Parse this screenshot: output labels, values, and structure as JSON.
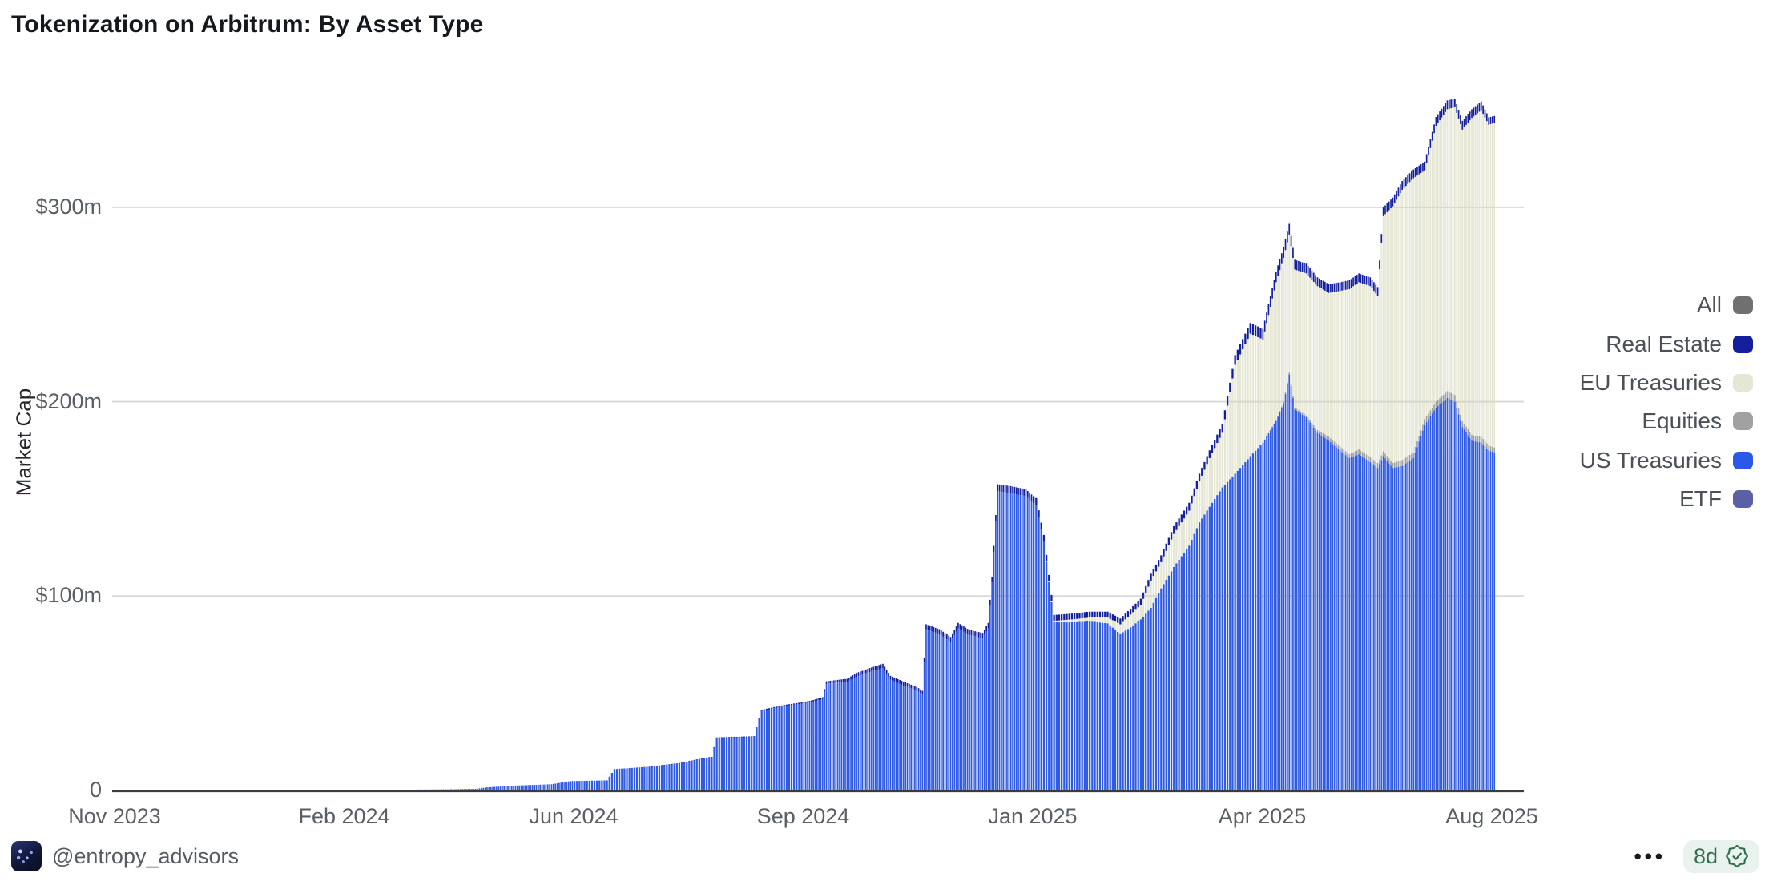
{
  "page": {
    "title": "Tokenization on Arbitrum: By Asset Type"
  },
  "legend": {
    "items": [
      {
        "series_id": "all",
        "label": "All",
        "color": "#6e7072"
      },
      {
        "series_id": "real_estate",
        "label": "Real Estate",
        "color": "#131f9c"
      },
      {
        "series_id": "eu_treasuries",
        "label": "EU Treasuries",
        "color": "#e5e6d4"
      },
      {
        "series_id": "equities",
        "label": "Equities",
        "color": "#9fa1a3"
      },
      {
        "series_id": "us_treasuries",
        "label": "US Treasuries",
        "color": "#2c58e8"
      },
      {
        "series_id": "etf",
        "label": "ETF",
        "color": "#5a5fa6"
      }
    ]
  },
  "footer": {
    "handle": "@entropy_advisors",
    "more_label": "•••",
    "age_badge": {
      "label": "8d"
    }
  },
  "chart_data": {
    "type": "bar",
    "stacked": true,
    "title": "Tokenization on Arbitrum: By Asset Type",
    "xlabel": "",
    "ylabel": "Market Cap",
    "unit": "USD millions",
    "ylim": [
      0,
      370
    ],
    "grid": "horizontal",
    "legend_position": "right",
    "bar_granularity": "daily",
    "y_ticks": [
      {
        "value": 0,
        "label": "0"
      },
      {
        "value": 100,
        "label": "$100m"
      },
      {
        "value": 200,
        "label": "$200m"
      },
      {
        "value": 300,
        "label": "$300m"
      }
    ],
    "x_ticks": [
      {
        "date": "2023-11-01",
        "label": "Nov 2023"
      },
      {
        "date": "2024-02-01",
        "label": "Feb 2024"
      },
      {
        "date": "2024-06-01",
        "label": "Jun 2024"
      },
      {
        "date": "2024-09-01",
        "label": "Sep 2024"
      },
      {
        "date": "2025-01-01",
        "label": "Jan 2025"
      },
      {
        "date": "2025-04-01",
        "label": "Apr 2025"
      },
      {
        "date": "2025-08-01",
        "label": "Aug 2025"
      }
    ],
    "series": [
      {
        "key": "us",
        "id": "us_treasuries",
        "name": "US Treasuries",
        "color": "#2f5ae3"
      },
      {
        "key": "eq",
        "id": "equities",
        "name": "Equities",
        "color": "#9fa1a3"
      },
      {
        "key": "eu",
        "id": "eu_treasuries",
        "name": "EU Treasuries",
        "color": "#e5e6d4"
      },
      {
        "key": "re",
        "id": "real_estate",
        "name": "Real Estate",
        "color": "#131f9c"
      },
      {
        "key": "etf",
        "id": "etf",
        "name": "ETF",
        "color": "#5a5fa6"
      }
    ],
    "stack_order": [
      "us",
      "eq",
      "eu",
      "re",
      "etf"
    ],
    "samples_unit": "$m",
    "samples": [
      {
        "d": "2023-11-01",
        "us": 0,
        "eq": 0,
        "eu": 0,
        "re": 0,
        "etf": 0
      },
      {
        "d": "2024-02-10",
        "us": 0,
        "eq": 0,
        "eu": 0,
        "re": 0,
        "etf": 0
      },
      {
        "d": "2024-02-14",
        "us": 0.3,
        "eq": 0,
        "eu": 0,
        "re": 0,
        "etf": 0
      },
      {
        "d": "2024-03-20",
        "us": 0.5,
        "eq": 0,
        "eu": 0,
        "re": 0,
        "etf": 0
      },
      {
        "d": "2024-04-10",
        "us": 0.8,
        "eq": 0,
        "eu": 0,
        "re": 0,
        "etf": 0
      },
      {
        "d": "2024-04-16",
        "us": 1.6,
        "eq": 0,
        "eu": 0,
        "re": 0,
        "etf": 0
      },
      {
        "d": "2024-05-01",
        "us": 2.5,
        "eq": 0,
        "eu": 0,
        "re": 0,
        "etf": 0
      },
      {
        "d": "2024-05-20",
        "us": 3.2,
        "eq": 0,
        "eu": 0,
        "re": 0,
        "etf": 0
      },
      {
        "d": "2024-05-30",
        "us": 4.8,
        "eq": 0,
        "eu": 0,
        "re": 0,
        "etf": 0
      },
      {
        "d": "2024-06-14",
        "us": 5.2,
        "eq": 0,
        "eu": 0,
        "re": 0,
        "etf": 0
      },
      {
        "d": "2024-06-17",
        "us": 11,
        "eq": 0,
        "eu": 0,
        "re": 0,
        "etf": 0
      },
      {
        "d": "2024-07-01",
        "us": 12,
        "eq": 0,
        "eu": 0,
        "re": 0.2,
        "etf": 0
      },
      {
        "d": "2024-07-14",
        "us": 14,
        "eq": 0,
        "eu": 0,
        "re": 0.3,
        "etf": 0
      },
      {
        "d": "2024-07-23",
        "us": 16.5,
        "eq": 0,
        "eu": 0,
        "re": 0.3,
        "etf": 0
      },
      {
        "d": "2024-07-26",
        "us": 17,
        "eq": 0,
        "eu": 0,
        "re": 0.3,
        "etf": 0
      },
      {
        "d": "2024-07-28",
        "us": 27,
        "eq": 0,
        "eu": 0,
        "re": 0.3,
        "etf": 0
      },
      {
        "d": "2024-08-12",
        "us": 27.5,
        "eq": 0,
        "eu": 0,
        "re": 0.4,
        "etf": 0
      },
      {
        "d": "2024-08-15",
        "us": 41,
        "eq": 0,
        "eu": 0,
        "re": 0.5,
        "etf": 0
      },
      {
        "d": "2024-08-24",
        "us": 43.5,
        "eq": 0,
        "eu": 0,
        "re": 0.5,
        "etf": 0
      },
      {
        "d": "2024-09-05",
        "us": 45.5,
        "eq": 0,
        "eu": 0,
        "re": 0.8,
        "etf": 0
      },
      {
        "d": "2024-09-11",
        "us": 47,
        "eq": 0,
        "eu": 0,
        "re": 1,
        "etf": 0
      },
      {
        "d": "2024-09-13",
        "us": 55,
        "eq": 0,
        "eu": 0,
        "re": 1.2,
        "etf": 0
      },
      {
        "d": "2024-09-24",
        "us": 56,
        "eq": 0,
        "eu": 0,
        "re": 1.5,
        "etf": 0
      },
      {
        "d": "2024-09-29",
        "us": 58.5,
        "eq": 0,
        "eu": 0,
        "re": 2,
        "etf": 0
      },
      {
        "d": "2024-10-06",
        "us": 61,
        "eq": 0,
        "eu": 0,
        "re": 2,
        "etf": 0
      },
      {
        "d": "2024-10-13",
        "us": 63,
        "eq": 0,
        "eu": 0,
        "re": 2.2,
        "etf": 0
      },
      {
        "d": "2024-10-17",
        "us": 57,
        "eq": 0,
        "eu": 0,
        "re": 2,
        "etf": 0
      },
      {
        "d": "2024-10-24",
        "us": 54,
        "eq": 0,
        "eu": 0,
        "re": 2,
        "etf": 0
      },
      {
        "d": "2024-10-31",
        "us": 51.5,
        "eq": 0,
        "eu": 0,
        "re": 1.8,
        "etf": 0
      },
      {
        "d": "2024-11-03",
        "us": 49.5,
        "eq": 0,
        "eu": 0,
        "re": 1.8,
        "etf": 0
      },
      {
        "d": "2024-11-05",
        "us": 83,
        "eq": 0,
        "eu": 0,
        "re": 2.5,
        "etf": 0
      },
      {
        "d": "2024-11-12",
        "us": 80.5,
        "eq": 0,
        "eu": 0,
        "re": 2.5,
        "etf": 0
      },
      {
        "d": "2024-11-18",
        "us": 76.5,
        "eq": 0,
        "eu": 0,
        "re": 2.5,
        "etf": 0
      },
      {
        "d": "2024-11-22",
        "us": 83.5,
        "eq": 0,
        "eu": 0,
        "re": 2.7,
        "etf": 0
      },
      {
        "d": "2024-11-28",
        "us": 80,
        "eq": 0,
        "eu": 0,
        "re": 2.6,
        "etf": 0
      },
      {
        "d": "2024-12-05",
        "us": 78.5,
        "eq": 0,
        "eu": 0,
        "re": 2.6,
        "etf": 0
      },
      {
        "d": "2024-12-08",
        "us": 83.5,
        "eq": 0,
        "eu": 0,
        "re": 2.7,
        "etf": 0
      },
      {
        "d": "2024-12-10",
        "us": 107,
        "eq": 0,
        "eu": 0,
        "re": 3,
        "etf": 0
      },
      {
        "d": "2024-12-13",
        "us": 154,
        "eq": 0,
        "eu": 0,
        "re": 3.6,
        "etf": 0
      },
      {
        "d": "2024-12-20",
        "us": 153,
        "eq": 0,
        "eu": 0,
        "re": 3.6,
        "etf": 0
      },
      {
        "d": "2024-12-28",
        "us": 151.5,
        "eq": 0,
        "eu": 0,
        "re": 3.5,
        "etf": 0
      },
      {
        "d": "2025-01-02",
        "us": 147,
        "eq": 0,
        "eu": 0,
        "re": 3.5,
        "etf": 0
      },
      {
        "d": "2025-01-05",
        "us": 128,
        "eq": 0,
        "eu": 0,
        "re": 3.5,
        "etf": 0
      },
      {
        "d": "2025-01-09",
        "us": 86.5,
        "eq": 0,
        "eu": 0.8,
        "re": 3,
        "etf": 0
      },
      {
        "d": "2025-01-16",
        "us": 86.5,
        "eq": 0,
        "eu": 1.5,
        "re": 3,
        "etf": 0
      },
      {
        "d": "2025-01-23",
        "us": 87,
        "eq": 0,
        "eu": 2,
        "re": 3,
        "etf": 0
      },
      {
        "d": "2025-01-30",
        "us": 86,
        "eq": 0,
        "eu": 3,
        "re": 3,
        "etf": 0
      },
      {
        "d": "2025-02-04",
        "us": 80.5,
        "eq": 0,
        "eu": 5,
        "re": 3,
        "etf": 0
      },
      {
        "d": "2025-02-08",
        "us": 84,
        "eq": 0,
        "eu": 6.5,
        "re": 3,
        "etf": 0
      },
      {
        "d": "2025-02-12",
        "us": 88,
        "eq": 0,
        "eu": 7.5,
        "re": 3.2,
        "etf": 0
      },
      {
        "d": "2025-02-16",
        "us": 94,
        "eq": 0,
        "eu": 14,
        "re": 3.5,
        "etf": 0
      },
      {
        "d": "2025-02-20",
        "us": 104,
        "eq": 0,
        "eu": 13.5,
        "re": 3.5,
        "etf": 0
      },
      {
        "d": "2025-02-25",
        "us": 115,
        "eq": 0,
        "eu": 17,
        "re": 4,
        "etf": 0
      },
      {
        "d": "2025-03-03",
        "us": 126,
        "eq": 0,
        "eu": 18,
        "re": 4,
        "etf": 0
      },
      {
        "d": "2025-03-07",
        "us": 138,
        "eq": 0,
        "eu": 21,
        "re": 4,
        "etf": 0
      },
      {
        "d": "2025-03-11",
        "us": 146,
        "eq": 0,
        "eu": 25,
        "re": 4,
        "etf": 0
      },
      {
        "d": "2025-03-16",
        "us": 156,
        "eq": 0,
        "eu": 28,
        "re": 4.5,
        "etf": 0
      },
      {
        "d": "2025-03-21",
        "us": 163,
        "eq": 0,
        "eu": 56,
        "re": 5,
        "etf": 0
      },
      {
        "d": "2025-03-27",
        "us": 172,
        "eq": 0,
        "eu": 63,
        "re": 5.5,
        "etf": 0
      },
      {
        "d": "2025-04-01",
        "us": 179,
        "eq": 0,
        "eu": 53,
        "re": 5.5,
        "etf": 0
      },
      {
        "d": "2025-04-08",
        "us": 190,
        "eq": 0.5,
        "eu": 71,
        "re": 5.5,
        "etf": 0
      },
      {
        "d": "2025-04-12",
        "us": 199,
        "eq": 1,
        "eu": 74,
        "re": 5.5,
        "etf": 0
      },
      {
        "d": "2025-04-15",
        "us": 214,
        "eq": 1,
        "eu": 71,
        "re": 5.5,
        "etf": 0
      },
      {
        "d": "2025-04-18",
        "us": 196,
        "eq": 1,
        "eu": 71,
        "re": 5,
        "etf": 0
      },
      {
        "d": "2025-04-24",
        "us": 192,
        "eq": 1,
        "eu": 73,
        "re": 5,
        "etf": 0
      },
      {
        "d": "2025-04-30",
        "us": 184,
        "eq": 1.5,
        "eu": 74,
        "re": 4.5,
        "etf": 0
      },
      {
        "d": "2025-05-06",
        "us": 180,
        "eq": 2,
        "eu": 74,
        "re": 4.5,
        "etf": 0
      },
      {
        "d": "2025-05-12",
        "us": 175,
        "eq": 2,
        "eu": 80,
        "re": 4.5,
        "etf": 0
      },
      {
        "d": "2025-05-17",
        "us": 171,
        "eq": 2,
        "eu": 85,
        "re": 4.5,
        "etf": 0
      },
      {
        "d": "2025-05-22",
        "us": 173,
        "eq": 2.5,
        "eu": 86,
        "re": 4.5,
        "etf": 0
      },
      {
        "d": "2025-05-28",
        "us": 169,
        "eq": 2.5,
        "eu": 88,
        "re": 4.5,
        "etf": 0
      },
      {
        "d": "2025-06-01",
        "us": 166,
        "eq": 2.5,
        "eu": 86,
        "re": 4.5,
        "etf": 0
      },
      {
        "d": "2025-06-04",
        "us": 172,
        "eq": 2.5,
        "eu": 121,
        "re": 4.5,
        "etf": 0
      },
      {
        "d": "2025-06-09",
        "us": 166,
        "eq": 2.5,
        "eu": 132,
        "re": 4.5,
        "etf": 0
      },
      {
        "d": "2025-06-14",
        "us": 167,
        "eq": 3,
        "eu": 139,
        "re": 4.5,
        "etf": 0
      },
      {
        "d": "2025-06-20",
        "us": 171,
        "eq": 3,
        "eu": 141,
        "re": 4.5,
        "etf": 0
      },
      {
        "d": "2025-06-26",
        "us": 188,
        "eq": 3,
        "eu": 128,
        "re": 4.5,
        "etf": 0
      },
      {
        "d": "2025-07-02",
        "us": 197,
        "eq": 3,
        "eu": 142,
        "re": 4.5,
        "etf": 0
      },
      {
        "d": "2025-07-08",
        "us": 202,
        "eq": 3.5,
        "eu": 145,
        "re": 4.5,
        "etf": 0
      },
      {
        "d": "2025-07-12",
        "us": 200,
        "eq": 3.5,
        "eu": 148,
        "re": 4.5,
        "etf": 0
      },
      {
        "d": "2025-07-16",
        "us": 187,
        "eq": 3,
        "eu": 150,
        "re": 4.5,
        "etf": 0
      },
      {
        "d": "2025-07-21",
        "us": 180,
        "eq": 3,
        "eu": 163,
        "re": 4.5,
        "etf": 0
      },
      {
        "d": "2025-07-26",
        "us": 179,
        "eq": 3,
        "eu": 168,
        "re": 4.5,
        "etf": 0
      },
      {
        "d": "2025-07-30",
        "us": 175,
        "eq": 2.5,
        "eu": 165,
        "re": 3.8,
        "etf": 0
      },
      {
        "d": "2025-08-02",
        "us": 174,
        "eq": 2.5,
        "eu": 167,
        "re": 3.5,
        "etf": 0
      }
    ]
  }
}
